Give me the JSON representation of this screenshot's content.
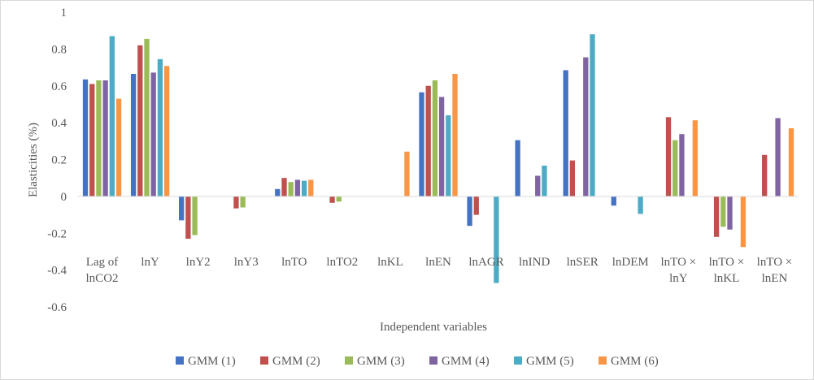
{
  "chart_data": {
    "type": "bar",
    "title": "",
    "xlabel": "Independent variables",
    "ylabel": "Elasticities (%)",
    "ylim": [
      -0.6,
      1
    ],
    "y_ticks": [
      "-0.6",
      "-0.4",
      "-0.2",
      "0",
      "0.2",
      "0.4",
      "0.6",
      "0.8",
      "1"
    ],
    "y_tick_values": [
      -0.6,
      -0.4,
      -0.2,
      0,
      0.2,
      0.4,
      0.6,
      0.8,
      1
    ],
    "grid": false,
    "legend_position": "bottom",
    "categories": [
      [
        "Lag of",
        "lnCO2"
      ],
      [
        "lnY"
      ],
      [
        "lnY2"
      ],
      [
        "lnY3"
      ],
      [
        "lnTO"
      ],
      [
        "lnTO2"
      ],
      [
        "lnKL"
      ],
      [
        "lnEN"
      ],
      [
        "lnAGR"
      ],
      [
        "lnIND"
      ],
      [
        "lnSER"
      ],
      [
        "lnDEM"
      ],
      [
        "lnTO ×",
        "lnY"
      ],
      [
        "lnTO ×",
        "lnKL"
      ],
      [
        "lnTO ×",
        "lnEN"
      ]
    ],
    "series": [
      {
        "name": "GMM (1)",
        "color": "#4472C4",
        "values": [
          0.635,
          0.665,
          -0.13,
          null,
          0.04,
          null,
          null,
          0.565,
          -0.16,
          0.305,
          0.685,
          -0.05,
          null,
          null,
          null
        ]
      },
      {
        "name": "GMM (2)",
        "color": "#C0504D",
        "values": [
          0.61,
          0.82,
          -0.23,
          -0.065,
          0.1,
          -0.035,
          null,
          0.6,
          -0.1,
          null,
          0.195,
          null,
          0.43,
          -0.22,
          0.225
        ]
      },
      {
        "name": "GMM (3)",
        "color": "#9BBB59",
        "values": [
          0.63,
          0.855,
          -0.21,
          -0.06,
          0.078,
          -0.028,
          null,
          0.63,
          null,
          null,
          null,
          null,
          0.305,
          -0.165,
          null
        ]
      },
      {
        "name": "GMM (4)",
        "color": "#8064A2",
        "values": [
          0.63,
          0.672,
          null,
          null,
          0.09,
          null,
          null,
          0.54,
          null,
          0.112,
          0.755,
          null,
          0.338,
          -0.18,
          0.425
        ]
      },
      {
        "name": "GMM (5)",
        "color": "#4BACC6",
        "values": [
          0.87,
          0.745,
          null,
          null,
          0.085,
          null,
          null,
          0.44,
          -0.47,
          0.167,
          0.88,
          -0.095,
          null,
          null,
          null
        ]
      },
      {
        "name": "GMM (6)",
        "color": "#F79646",
        "values": [
          0.53,
          0.708,
          null,
          null,
          0.09,
          null,
          0.243,
          0.665,
          null,
          null,
          null,
          null,
          0.413,
          -0.275,
          0.37
        ]
      }
    ]
  }
}
